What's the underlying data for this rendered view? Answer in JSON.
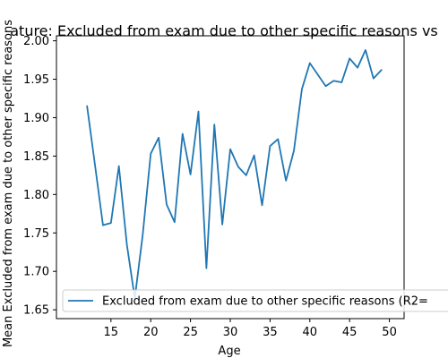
{
  "chart_data": {
    "type": "line",
    "title": "ature: Excluded from exam due to other specific reasons vs",
    "xlabel": "Age",
    "ylabel": "Mean Excluded from exam due to other specific reasons",
    "xlim": [
      8.15,
      51.85
    ],
    "ylim": [
      1.6385,
      2.0065
    ],
    "x_ticks": [
      15,
      20,
      25,
      30,
      35,
      40,
      45,
      50
    ],
    "y_ticks": [
      1.65,
      1.7,
      1.75,
      1.8,
      1.85,
      1.9,
      1.95,
      2.0
    ],
    "x_tick_labels": [
      "15",
      "20",
      "25",
      "30",
      "35",
      "40",
      "45",
      "50"
    ],
    "y_tick_labels": [
      "1.65",
      "1.70",
      "1.75",
      "1.80",
      "1.85",
      "1.90",
      "1.95",
      "2.00"
    ],
    "grid": false,
    "legend_position": "lower-right",
    "series": [
      {
        "name": "Excluded from exam due to other specific reasons (R2=",
        "color": "#1f77b4",
        "x": [
          12,
          13,
          14,
          15,
          16,
          17,
          18,
          19,
          20,
          21,
          22,
          23,
          24,
          25,
          26,
          27,
          28,
          29,
          30,
          31,
          32,
          33,
          34,
          35,
          36,
          37,
          38,
          39,
          40,
          41,
          42,
          43,
          44,
          45,
          46,
          47,
          48,
          49
        ],
        "y": [
          1.915,
          1.838,
          1.76,
          1.763,
          1.837,
          1.735,
          1.665,
          1.748,
          1.853,
          1.874,
          1.787,
          1.764,
          1.879,
          1.826,
          1.908,
          1.704,
          1.891,
          1.761,
          1.859,
          1.836,
          1.825,
          1.851,
          1.786,
          1.863,
          1.872,
          1.818,
          1.857,
          1.937,
          1.971,
          1.956,
          1.941,
          1.948,
          1.946,
          1.977,
          1.965,
          1.988,
          1.951,
          1.962
        ]
      }
    ]
  }
}
